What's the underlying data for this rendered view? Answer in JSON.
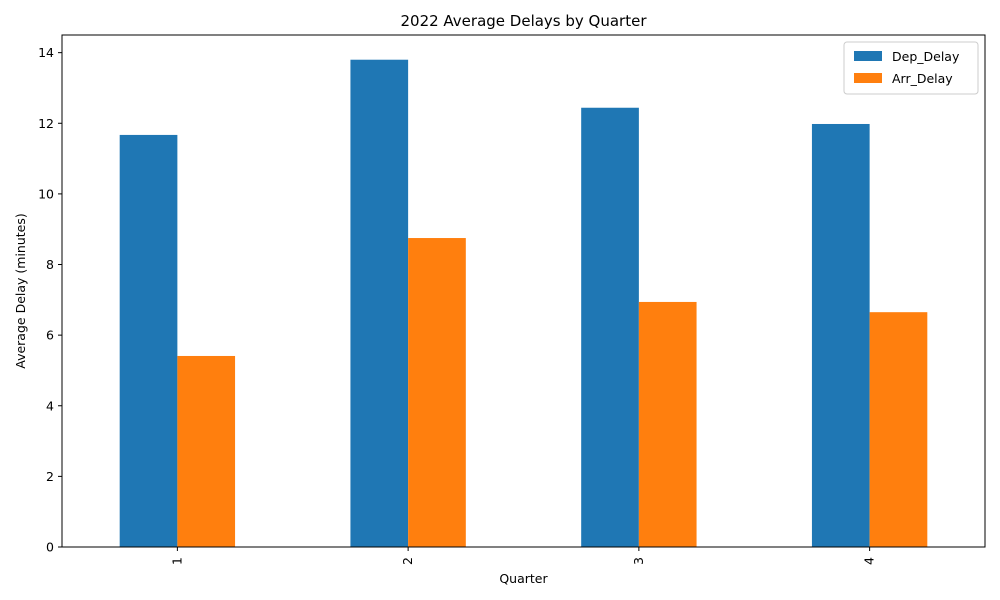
{
  "chart_data": {
    "type": "bar",
    "title": "2022 Average Delays by Quarter",
    "xlabel": "Quarter",
    "ylabel": "Average Delay (minutes)",
    "categories": [
      "1",
      "2",
      "3",
      "4"
    ],
    "series": [
      {
        "name": "Dep_Delay",
        "values": [
          11.67,
          13.8,
          12.44,
          11.98
        ],
        "color": "#1f77b4"
      },
      {
        "name": "Arr_Delay",
        "values": [
          5.41,
          8.75,
          6.94,
          6.65
        ],
        "color": "#ff7f0e"
      }
    ],
    "ylim": [
      0,
      14.5
    ],
    "yticks": [
      "0",
      "2",
      "4",
      "6",
      "8",
      "10",
      "12",
      "14"
    ],
    "grid": false,
    "legend": "top-right",
    "xtick_rotation": "vertical"
  }
}
